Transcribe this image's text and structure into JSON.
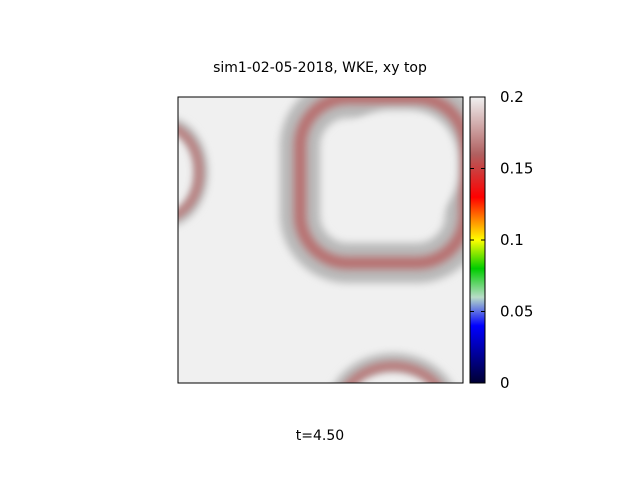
{
  "title": "sim1-02-05-2018, WKE, xy top",
  "time_label": "t=4.50",
  "chart_data": {
    "type": "heatmap",
    "title": "sim1-02-05-2018, WKE, xy top",
    "xlabel": "",
    "ylabel": "",
    "colorbar": {
      "range": [
        0,
        0.2
      ],
      "ticks": [
        0,
        0.05,
        0.1,
        0.15,
        0.2
      ],
      "tick_labels": [
        "0",
        "0.05",
        "0.1",
        "0.15",
        "0.2"
      ],
      "colormap": [
        {
          "v": 0.0,
          "c": "#000033"
        },
        {
          "v": 0.04,
          "c": "#0000ff"
        },
        {
          "v": 0.06,
          "c": "#b8dcc8"
        },
        {
          "v": 0.08,
          "c": "#00cc00"
        },
        {
          "v": 0.1,
          "c": "#ffff00"
        },
        {
          "v": 0.115,
          "c": "#ff8000"
        },
        {
          "v": 0.13,
          "c": "#ff0000"
        },
        {
          "v": 0.16,
          "c": "#b06060"
        },
        {
          "v": 0.2,
          "c": "#f0f0f0"
        }
      ]
    },
    "background_value": 0.2,
    "structures": [
      {
        "type": "ring",
        "center": [
          0.77,
          0.77
        ],
        "half_width": [
          0.19,
          0.2
        ],
        "core_value": 0.2,
        "ring_value": 0.16,
        "description_value_outer": 0.19
      },
      {
        "type": "partial-ring",
        "center": [
          -0.05,
          0.74
        ],
        "half_width": [
          0.12,
          0.15
        ],
        "ring_value": 0.16
      },
      {
        "type": "partial-ring",
        "center": [
          0.72,
          -0.12
        ],
        "half_width": [
          0.18,
          0.22
        ],
        "ring_value": 0.16
      }
    ]
  }
}
